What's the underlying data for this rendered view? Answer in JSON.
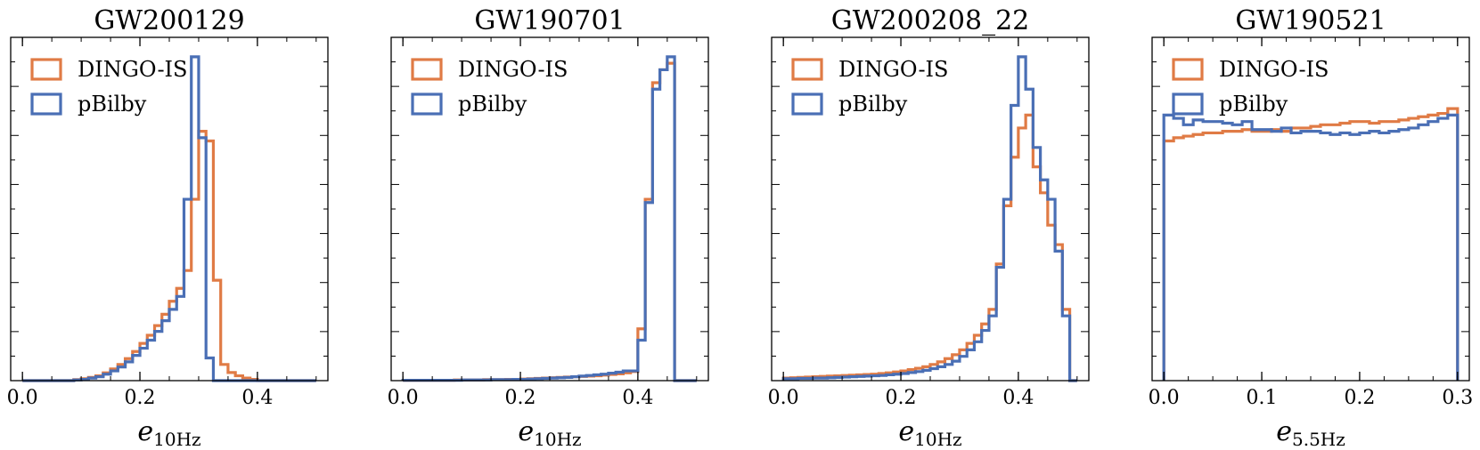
{
  "colors": {
    "dingo": "#E07B45",
    "pbilby": "#4A6FB5"
  },
  "chart_data": [
    {
      "type": "histogram",
      "title": "GW200129",
      "xlabel": "e",
      "xlabel_sub": "10Hz",
      "xlim": [
        -0.02,
        0.52
      ],
      "ylim": [
        0,
        1.06
      ],
      "xticks": [
        0.0,
        0.2,
        0.4
      ],
      "xtick_labels": [
        "0.0",
        "0.2",
        "0.4"
      ],
      "legend": [
        "DINGO-IS",
        "pBilby"
      ],
      "legend_position": "top-left",
      "bin_edges": [
        0.0,
        0.0125,
        0.025,
        0.0375,
        0.05,
        0.0625,
        0.075,
        0.0875,
        0.1,
        0.1125,
        0.125,
        0.1375,
        0.15,
        0.1625,
        0.175,
        0.1875,
        0.2,
        0.2125,
        0.225,
        0.2375,
        0.25,
        0.2625,
        0.275,
        0.2875,
        0.3,
        0.3125,
        0.325,
        0.3375,
        0.35,
        0.3625,
        0.375,
        0.3875,
        0.4,
        0.4125,
        0.425,
        0.4375,
        0.45,
        0.4625,
        0.475,
        0.4875,
        0.5
      ],
      "series": [
        {
          "name": "DINGO-IS",
          "values": [
            0,
            0,
            0,
            0,
            0,
            0,
            0,
            0.003,
            0.006,
            0.01,
            0.015,
            0.024,
            0.036,
            0.05,
            0.068,
            0.09,
            0.115,
            0.14,
            0.17,
            0.205,
            0.245,
            0.285,
            0.34,
            0.56,
            0.77,
            0.74,
            0.31,
            0.05,
            0.025,
            0.015,
            0.008,
            0.004,
            0,
            0,
            0,
            0,
            0,
            0,
            0,
            0
          ]
        },
        {
          "name": "pBilby",
          "values": [
            0,
            0,
            0,
            0,
            0,
            0,
            0,
            0.002,
            0.004,
            0.008,
            0.012,
            0.02,
            0.03,
            0.042,
            0.058,
            0.078,
            0.1,
            0.125,
            0.152,
            0.185,
            0.22,
            0.26,
            0.56,
            1.0,
            0.75,
            0.07,
            0,
            0,
            0,
            0,
            0,
            0,
            0,
            0,
            0,
            0,
            0,
            0,
            0,
            0
          ]
        }
      ]
    },
    {
      "type": "histogram",
      "title": "GW190701",
      "xlabel": "e",
      "xlabel_sub": "10Hz",
      "xlim": [
        -0.02,
        0.52
      ],
      "ylim": [
        0,
        1.06
      ],
      "xticks": [
        0.0,
        0.2,
        0.4
      ],
      "xtick_labels": [
        "0.0",
        "0.2",
        "0.4"
      ],
      "legend": [
        "DINGO-IS",
        "pBilby"
      ],
      "legend_position": "top-left",
      "bin_edges": [
        0.0,
        0.0125,
        0.025,
        0.0375,
        0.05,
        0.0625,
        0.075,
        0.0875,
        0.1,
        0.1125,
        0.125,
        0.1375,
        0.15,
        0.1625,
        0.175,
        0.1875,
        0.2,
        0.2125,
        0.225,
        0.2375,
        0.25,
        0.2625,
        0.275,
        0.2875,
        0.3,
        0.3125,
        0.325,
        0.3375,
        0.35,
        0.3625,
        0.375,
        0.3875,
        0.4,
        0.4125,
        0.425,
        0.4375,
        0.45,
        0.4625,
        0.475,
        0.4875,
        0.5
      ],
      "series": [
        {
          "name": "DINGO-IS",
          "values": [
            0.001,
            0.001,
            0.001,
            0.001,
            0.001,
            0.001,
            0.001,
            0.002,
            0.002,
            0.002,
            0.002,
            0.003,
            0.003,
            0.003,
            0.004,
            0.004,
            0.005,
            0.006,
            0.007,
            0.008,
            0.009,
            0.01,
            0.011,
            0.012,
            0.013,
            0.014,
            0.015,
            0.017,
            0.019,
            0.021,
            0.024,
            0.028,
            0.16,
            0.56,
            0.92,
            0.96,
            0.98,
            0,
            0,
            0
          ]
        },
        {
          "name": "pBilby",
          "values": [
            0.001,
            0.001,
            0.001,
            0.001,
            0.001,
            0.001,
            0.001,
            0.001,
            0.002,
            0.002,
            0.002,
            0.002,
            0.003,
            0.003,
            0.003,
            0.004,
            0.004,
            0.005,
            0.006,
            0.007,
            0.008,
            0.009,
            0.01,
            0.012,
            0.014,
            0.016,
            0.018,
            0.02,
            0.023,
            0.026,
            0.03,
            0.03,
            0.125,
            0.55,
            0.9,
            0.96,
            1.0,
            0,
            0,
            0
          ]
        }
      ]
    },
    {
      "type": "histogram",
      "title": "GW200208_22",
      "xlabel": "e",
      "xlabel_sub": "10Hz",
      "xlim": [
        -0.02,
        0.52
      ],
      "ylim": [
        0,
        1.06
      ],
      "xticks": [
        0.0,
        0.2,
        0.4
      ],
      "xtick_labels": [
        "0.0",
        "0.2",
        "0.4"
      ],
      "legend": [
        "DINGO-IS",
        "pBilby"
      ],
      "legend_position": "top-left",
      "bin_edges": [
        0.0,
        0.0125,
        0.025,
        0.0375,
        0.05,
        0.0625,
        0.075,
        0.0875,
        0.1,
        0.1125,
        0.125,
        0.1375,
        0.15,
        0.1625,
        0.175,
        0.1875,
        0.2,
        0.2125,
        0.225,
        0.2375,
        0.25,
        0.2625,
        0.275,
        0.2875,
        0.3,
        0.3125,
        0.325,
        0.3375,
        0.35,
        0.3625,
        0.375,
        0.3875,
        0.4,
        0.4125,
        0.425,
        0.4375,
        0.45,
        0.4625,
        0.475,
        0.4875,
        0.5
      ],
      "series": [
        {
          "name": "DINGO-IS",
          "values": [
            0.008,
            0.009,
            0.01,
            0.011,
            0.012,
            0.013,
            0.014,
            0.015,
            0.016,
            0.017,
            0.018,
            0.019,
            0.02,
            0.022,
            0.024,
            0.027,
            0.03,
            0.034,
            0.038,
            0.043,
            0.05,
            0.058,
            0.068,
            0.08,
            0.095,
            0.115,
            0.14,
            0.175,
            0.22,
            0.36,
            0.54,
            0.69,
            0.78,
            0.82,
            0.66,
            0.58,
            0.48,
            0.42,
            0.22,
            0
          ]
        },
        {
          "name": "pBilby",
          "values": [
            0.006,
            0.006,
            0.007,
            0.007,
            0.008,
            0.008,
            0.009,
            0.01,
            0.011,
            0.012,
            0.013,
            0.014,
            0.015,
            0.016,
            0.018,
            0.02,
            0.022,
            0.025,
            0.028,
            0.032,
            0.037,
            0.043,
            0.05,
            0.06,
            0.075,
            0.095,
            0.12,
            0.155,
            0.2,
            0.35,
            0.56,
            0.85,
            1.0,
            0.9,
            0.72,
            0.62,
            0.56,
            0.4,
            0.2,
            0
          ]
        }
      ]
    },
    {
      "type": "histogram",
      "title": "GW190521",
      "xlabel": "e",
      "xlabel_sub": "5.5Hz",
      "xlim": [
        -0.012,
        0.312
      ],
      "ylim": [
        0,
        1.06
      ],
      "xticks": [
        0.0,
        0.1,
        0.2,
        0.3
      ],
      "xtick_labels": [
        "0.0",
        "0.1",
        "0.2",
        "0.3"
      ],
      "legend": [
        "DINGO-IS",
        "pBilby"
      ],
      "legend_position": "top-left",
      "bin_edges": [
        0.0,
        0.01,
        0.02,
        0.03,
        0.04,
        0.05,
        0.06,
        0.07,
        0.08,
        0.09,
        0.1,
        0.11,
        0.12,
        0.13,
        0.14,
        0.15,
        0.16,
        0.17,
        0.18,
        0.19,
        0.2,
        0.21,
        0.22,
        0.23,
        0.24,
        0.25,
        0.26,
        0.27,
        0.28,
        0.29,
        0.3
      ],
      "series": [
        {
          "name": "DINGO-IS",
          "values": [
            0.74,
            0.75,
            0.755,
            0.76,
            0.765,
            0.765,
            0.77,
            0.77,
            0.775,
            0.77,
            0.77,
            0.775,
            0.77,
            0.78,
            0.78,
            0.785,
            0.79,
            0.79,
            0.795,
            0.8,
            0.8,
            0.795,
            0.8,
            0.8,
            0.805,
            0.81,
            0.815,
            0.82,
            0.825,
            0.84
          ]
        },
        {
          "name": "pBilby",
          "values": [
            0.82,
            0.81,
            0.79,
            0.805,
            0.8,
            0.8,
            0.795,
            0.79,
            0.8,
            0.775,
            0.775,
            0.77,
            0.78,
            0.765,
            0.77,
            0.77,
            0.765,
            0.76,
            0.765,
            0.76,
            0.765,
            0.77,
            0.765,
            0.77,
            0.775,
            0.78,
            0.79,
            0.8,
            0.81,
            0.82
          ]
        }
      ]
    }
  ]
}
